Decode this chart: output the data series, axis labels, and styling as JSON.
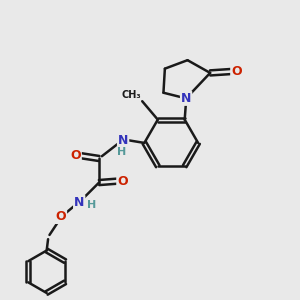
{
  "background_color": "#e9e9e9",
  "line_color": "#1a1a1a",
  "bond_width": 1.8,
  "atom_colors": {
    "N": "#3333bb",
    "O": "#cc2200",
    "H": "#559999",
    "C": "#1a1a1a"
  },
  "font_size_atoms": 9,
  "font_size_h": 8,
  "font_size_small": 7.5
}
